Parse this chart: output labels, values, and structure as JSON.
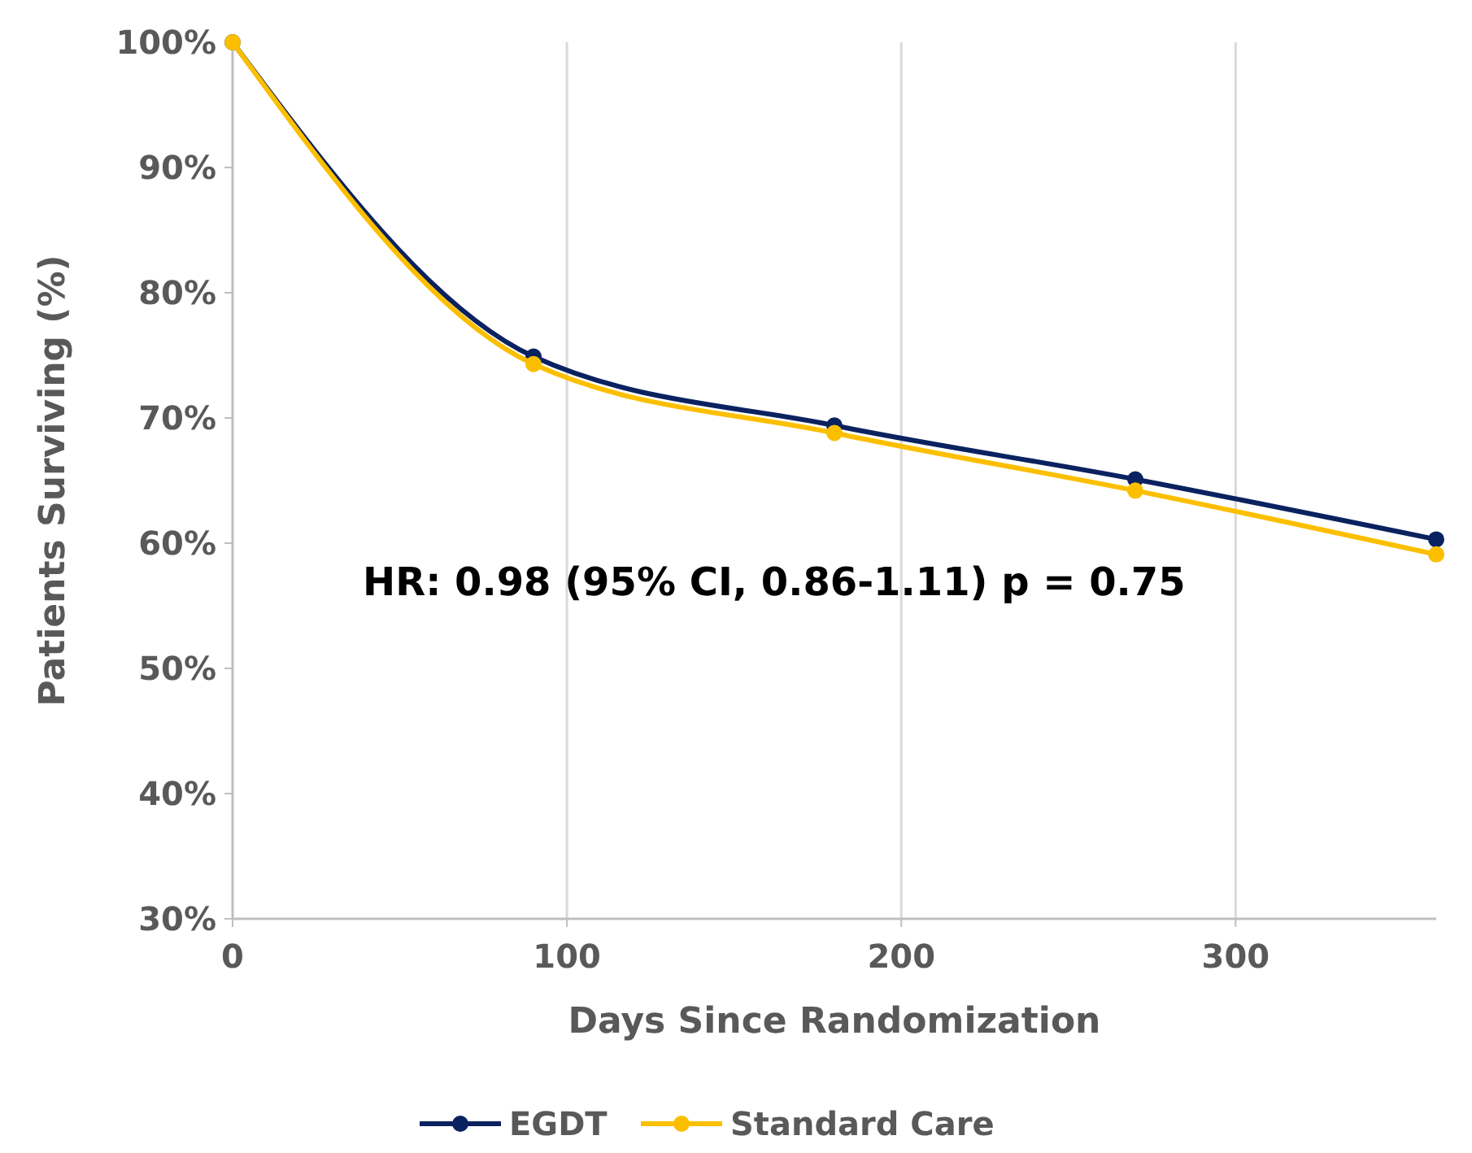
{
  "chart_data": {
    "type": "line",
    "xlabel": "Days Since Randomization",
    "ylabel": "Patients Surviving (%)",
    "x": [
      0,
      90,
      180,
      270,
      360
    ],
    "series": [
      {
        "name": "EGDT",
        "color": "#0b2260",
        "values": [
          100,
          74.9,
          69.4,
          65.1,
          60.3
        ]
      },
      {
        "name": "Standard Care",
        "color": "#fbbf00",
        "values": [
          100,
          74.3,
          68.8,
          64.2,
          59.1
        ]
      }
    ],
    "xlim": [
      0,
      360
    ],
    "xticks": [
      0,
      100,
      200,
      300
    ],
    "ylim": [
      30,
      100
    ],
    "yticks": [
      {
        "value": 30,
        "label": "30%"
      },
      {
        "value": 40,
        "label": "40%"
      },
      {
        "value": 50,
        "label": "50%"
      },
      {
        "value": 60,
        "label": "60%"
      },
      {
        "value": 70,
        "label": "70%"
      },
      {
        "value": 80,
        "label": "80%"
      },
      {
        "value": 90,
        "label": "90%"
      },
      {
        "value": 100,
        "label": "100%"
      }
    ],
    "grid": "x",
    "legend": "bottom",
    "marker": "circle",
    "line_style": "solid",
    "annotations": [
      "HR: 0.98 (95% CI, 0.86-1.11) p = 0.75"
    ]
  }
}
